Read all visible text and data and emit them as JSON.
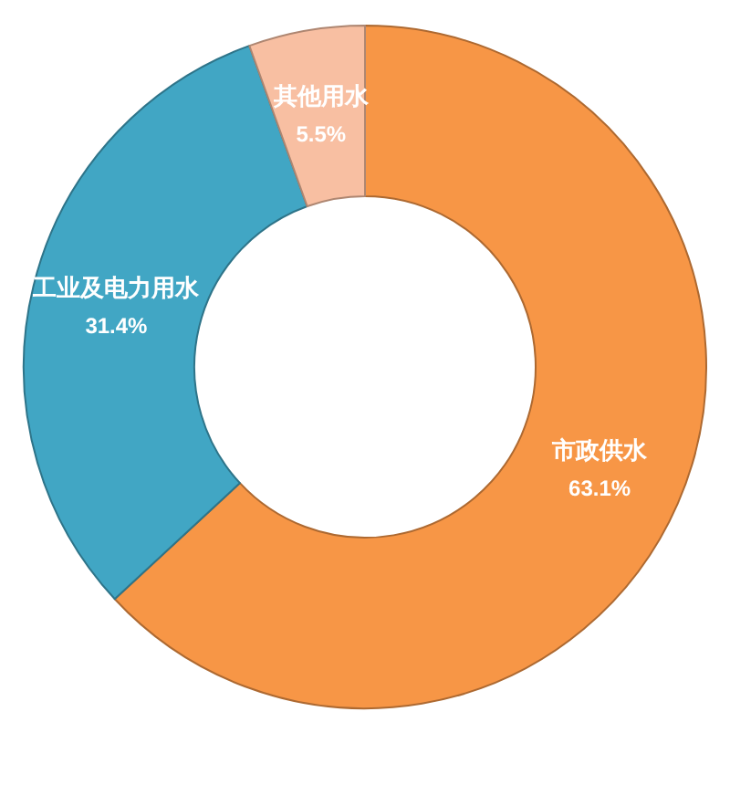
{
  "chart_data": {
    "type": "donut",
    "categories": [
      "市政供水",
      "工业及电力用水",
      "其他用水"
    ],
    "values": [
      63.1,
      31.4,
      5.5
    ],
    "colors": [
      "#f79646",
      "#41a6c4",
      "#f8bfa2"
    ],
    "value_labels": [
      "63.1%",
      "31.4%",
      "5.5%"
    ]
  }
}
